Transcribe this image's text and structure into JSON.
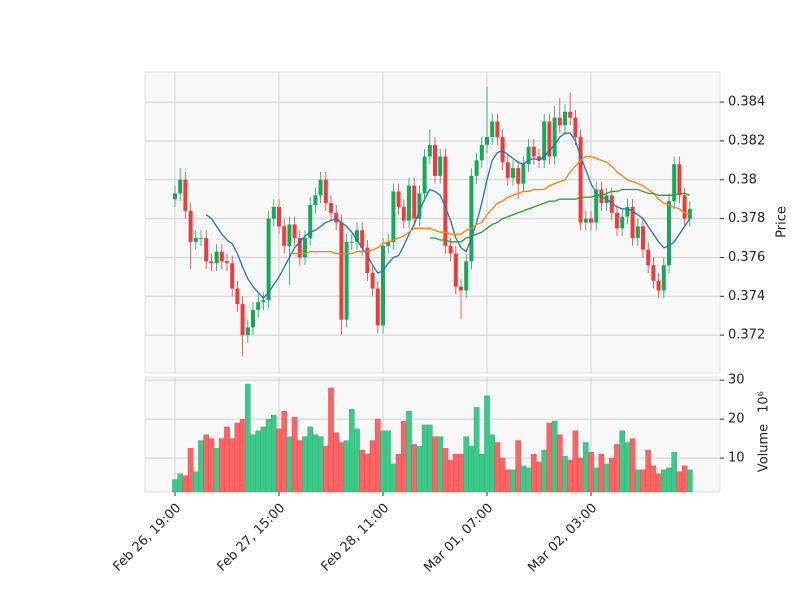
{
  "chart_data": {
    "type": "candlestick",
    "y_label": "Price",
    "volume_label": "Volume",
    "volume_exponent": "10⁶",
    "categories": [
      "Feb 26, 19:00",
      null,
      null,
      null,
      null,
      null,
      null,
      null,
      null,
      null,
      null,
      null,
      null,
      null,
      null,
      null,
      null,
      null,
      null,
      null,
      "Feb 27, 15:00",
      null,
      null,
      null,
      null,
      null,
      null,
      null,
      null,
      null,
      null,
      null,
      null,
      null,
      null,
      null,
      null,
      null,
      null,
      null,
      "Feb 28, 11:00",
      null,
      null,
      null,
      null,
      null,
      null,
      null,
      null,
      null,
      null,
      null,
      null,
      null,
      null,
      null,
      null,
      null,
      null,
      null,
      "Mar 01, 07:00",
      null,
      null,
      null,
      null,
      null,
      null,
      null,
      null,
      null,
      null,
      null,
      null,
      null,
      null,
      null,
      null,
      null,
      null,
      null,
      "Mar 02, 03:00",
      null,
      null,
      null,
      null,
      null,
      null,
      null,
      null,
      null,
      null,
      null,
      null,
      null,
      null,
      null,
      null,
      null,
      null,
      null
    ],
    "open": [
      0.379,
      0.3793,
      0.38,
      0.3784,
      0.3768,
      0.377,
      0.377,
      0.3758,
      0.3757,
      0.3763,
      0.3758,
      0.3757,
      0.3744,
      0.3736,
      0.372,
      0.3724,
      0.3733,
      0.3737,
      0.3738,
      0.378,
      0.3786,
      0.3776,
      0.3766,
      0.3777,
      0.377,
      0.376,
      0.377,
      0.3787,
      0.3792,
      0.38,
      0.3788,
      0.3783,
      0.3778,
      0.3728,
      0.3768,
      0.3768,
      0.3774,
      0.3765,
      0.3752,
      0.3744,
      0.3725,
      0.3766,
      0.3768,
      0.3794,
      0.3786,
      0.3779,
      0.3797,
      0.378,
      0.3793,
      0.3812,
      0.3818,
      0.3802,
      0.3812,
      0.3766,
      0.3762,
      0.3745,
      0.3743,
      0.3758,
      0.3802,
      0.381,
      0.3818,
      0.3822,
      0.383,
      0.3822,
      0.3809,
      0.3801,
      0.3806,
      0.3798,
      0.3808,
      0.3817,
      0.3812,
      0.381,
      0.383,
      0.3812,
      0.3832,
      0.3828,
      0.3835,
      0.3832,
      0.3822,
      0.3778,
      0.378,
      0.3778,
      0.3795,
      0.3788,
      0.3792,
      0.3783,
      0.3775,
      0.3781,
      0.3786,
      0.377,
      0.3776,
      0.3764,
      0.3756,
      0.3748,
      0.3743,
      0.3756,
      0.3789,
      0.3808,
      0.3792,
      0.378
    ],
    "high": [
      0.3797,
      0.3806,
      0.3804,
      0.3788,
      0.3774,
      0.3774,
      0.3774,
      0.3762,
      0.3767,
      0.3767,
      0.3762,
      0.3761,
      0.3748,
      0.374,
      0.3728,
      0.3737,
      0.3741,
      0.3742,
      0.3784,
      0.379,
      0.379,
      0.378,
      0.3781,
      0.3781,
      0.3774,
      0.3774,
      0.3791,
      0.3796,
      0.3804,
      0.3804,
      0.3792,
      0.3787,
      0.3782,
      0.3772,
      0.3772,
      0.3778,
      0.3778,
      0.3769,
      0.3756,
      0.3748,
      0.377,
      0.3772,
      0.3798,
      0.3798,
      0.379,
      0.3801,
      0.3801,
      0.3797,
      0.3816,
      0.3826,
      0.3822,
      0.3816,
      0.3816,
      0.377,
      0.3766,
      0.3749,
      0.3762,
      0.3806,
      0.3814,
      0.3822,
      0.3848,
      0.3834,
      0.3834,
      0.3826,
      0.3813,
      0.381,
      0.381,
      0.3812,
      0.3821,
      0.3821,
      0.3816,
      0.3834,
      0.3834,
      0.3838,
      0.3842,
      0.3839,
      0.3845,
      0.3836,
      0.3826,
      0.3784,
      0.3784,
      0.3799,
      0.3799,
      0.3796,
      0.3796,
      0.3787,
      0.3785,
      0.379,
      0.379,
      0.378,
      0.378,
      0.3768,
      0.376,
      0.3752,
      0.376,
      0.3793,
      0.3812,
      0.3812,
      0.3796,
      0.3789
    ],
    "low": [
      0.3786,
      0.3789,
      0.378,
      0.3754,
      0.3764,
      0.3766,
      0.3754,
      0.3753,
      0.3753,
      0.3754,
      0.3753,
      0.374,
      0.3732,
      0.3709,
      0.3716,
      0.372,
      0.3729,
      0.3733,
      0.3734,
      0.3776,
      0.3772,
      0.3762,
      0.3746,
      0.3766,
      0.3756,
      0.3756,
      0.3766,
      0.3783,
      0.3788,
      0.3784,
      0.3779,
      0.3774,
      0.372,
      0.3724,
      0.3764,
      0.3764,
      0.3761,
      0.3748,
      0.374,
      0.3721,
      0.3721,
      0.3762,
      0.3764,
      0.3782,
      0.3775,
      0.3775,
      0.3776,
      0.3776,
      0.3789,
      0.3808,
      0.3798,
      0.3798,
      0.3762,
      0.3758,
      0.3741,
      0.3728,
      0.3739,
      0.3754,
      0.3798,
      0.3806,
      0.3814,
      0.3818,
      0.3818,
      0.3805,
      0.3797,
      0.3797,
      0.379,
      0.3794,
      0.3804,
      0.3808,
      0.3806,
      0.3806,
      0.3808,
      0.3808,
      0.3824,
      0.3824,
      0.3828,
      0.3818,
      0.3774,
      0.3774,
      0.3774,
      0.3774,
      0.3784,
      0.3784,
      0.3779,
      0.3771,
      0.3771,
      0.3777,
      0.3766,
      0.3766,
      0.376,
      0.3752,
      0.3744,
      0.3739,
      0.3739,
      0.3752,
      0.3785,
      0.3788,
      0.3776,
      0.3776
    ],
    "close": [
      0.3793,
      0.38,
      0.3784,
      0.3768,
      0.377,
      0.377,
      0.3758,
      0.3757,
      0.3763,
      0.3758,
      0.3757,
      0.3744,
      0.3736,
      0.372,
      0.3724,
      0.3733,
      0.3737,
      0.3738,
      0.378,
      0.3786,
      0.3776,
      0.3766,
      0.3777,
      0.377,
      0.376,
      0.377,
      0.3787,
      0.3792,
      0.38,
      0.3788,
      0.3783,
      0.3778,
      0.3728,
      0.3768,
      0.3768,
      0.3774,
      0.3765,
      0.3752,
      0.3744,
      0.3725,
      0.3766,
      0.3768,
      0.3794,
      0.3786,
      0.3779,
      0.3797,
      0.378,
      0.3793,
      0.3812,
      0.3818,
      0.3802,
      0.3812,
      0.3766,
      0.3762,
      0.3745,
      0.3743,
      0.3758,
      0.3802,
      0.381,
      0.3818,
      0.3822,
      0.383,
      0.3822,
      0.3809,
      0.3801,
      0.3806,
      0.3798,
      0.3808,
      0.3817,
      0.3812,
      0.381,
      0.383,
      0.3812,
      0.3832,
      0.3828,
      0.3835,
      0.3832,
      0.3822,
      0.3778,
      0.378,
      0.3778,
      0.3795,
      0.3788,
      0.3792,
      0.3783,
      0.3775,
      0.3781,
      0.3786,
      0.377,
      0.3776,
      0.3764,
      0.3756,
      0.3748,
      0.3743,
      0.3756,
      0.3789,
      0.3808,
      0.3792,
      0.378,
      0.3785
    ],
    "volume": [
      4.5,
      6,
      5.5,
      12.5,
      6.5,
      14.5,
      16,
      15,
      12.5,
      15,
      18,
      15,
      19,
      20,
      29,
      16,
      17,
      18,
      20,
      21,
      17.5,
      22,
      15.5,
      20.5,
      14.5,
      15.5,
      18,
      16,
      15.5,
      13,
      28,
      16.5,
      14,
      14.5,
      22.5,
      17.5,
      12,
      11,
      14.5,
      20,
      17,
      17,
      8.5,
      11,
      19.5,
      22,
      13.5,
      13,
      18.5,
      18.5,
      15.5,
      15.5,
      12.5,
      9.5,
      11,
      11,
      15.5,
      13,
      23,
      11,
      26,
      16,
      14,
      10,
      7,
      7,
      14.5,
      8,
      7.5,
      11,
      9,
      12,
      19,
      19.5,
      16,
      10.5,
      9.5,
      17,
      10,
      14,
      11.5,
      7.5,
      11,
      8.5,
      10,
      13.5,
      17,
      14,
      15,
      7,
      7,
      12,
      8,
      6,
      7,
      7.5,
      11.5,
      6.5,
      8,
      7
    ],
    "moving_averages": [
      {
        "color": "#1f77b4",
        "values": [
          null,
          null,
          null,
          null,
          null,
          null,
          0.3782,
          0.378,
          0.3776,
          0.3772,
          0.3769,
          0.3767,
          0.3762,
          0.3755,
          0.3749,
          0.3745,
          0.3742,
          0.3739,
          0.3742,
          0.3746,
          0.375,
          0.3755,
          0.376,
          0.3765,
          0.3768,
          0.3771,
          0.3773,
          0.3774,
          0.3776,
          0.3778,
          0.3779,
          0.378,
          0.3778,
          0.3776,
          0.3773,
          0.3769,
          0.3765,
          0.3761,
          0.3756,
          0.3752,
          0.3753,
          0.3757,
          0.376,
          0.3761,
          0.3766,
          0.3772,
          0.3777,
          0.3784,
          0.379,
          0.3795,
          0.3794,
          0.3792,
          0.3786,
          0.3779,
          0.377,
          0.3765,
          0.3763,
          0.377,
          0.3778,
          0.3788,
          0.38,
          0.381,
          0.3814,
          0.3815,
          0.3813,
          0.3811,
          0.3809,
          0.3808,
          0.381,
          0.3811,
          0.381,
          0.3812,
          0.3815,
          0.3818,
          0.3822,
          0.3824,
          0.3824,
          0.382,
          0.3812,
          0.3805,
          0.3798,
          0.3793,
          0.3791,
          0.379,
          0.3788,
          0.3786,
          0.3785,
          0.3785,
          0.3784,
          0.3782,
          0.378,
          0.3776,
          0.3772,
          0.3768,
          0.3765,
          0.3766,
          0.3768,
          0.3772,
          0.3776,
          0.378
        ]
      },
      {
        "color": "#ff7f0e",
        "values": [
          null,
          null,
          null,
          null,
          null,
          null,
          null,
          null,
          null,
          null,
          null,
          null,
          null,
          null,
          null,
          null,
          null,
          null,
          null,
          null,
          null,
          null,
          0.3762,
          0.3762,
          0.3762,
          0.3762,
          0.3763,
          0.3763,
          0.3763,
          0.3763,
          0.3763,
          0.3762,
          0.3762,
          0.3762,
          0.3762,
          0.3763,
          0.3763,
          0.3763,
          0.3764,
          0.3765,
          0.3767,
          0.3768,
          0.3769,
          0.377,
          0.3771,
          0.3773,
          0.3775,
          0.3775,
          0.3775,
          0.3775,
          0.3774,
          0.3773,
          0.3773,
          0.3772,
          0.3772,
          0.3772,
          0.3774,
          0.3775,
          0.3777,
          0.3778,
          0.3782,
          0.3785,
          0.3788,
          0.3789,
          0.3791,
          0.3792,
          0.3793,
          0.3794,
          0.3794,
          0.3795,
          0.3795,
          0.3795,
          0.3797,
          0.3798,
          0.3799,
          0.38,
          0.3804,
          0.3807,
          0.381,
          0.3812,
          0.3812,
          0.3811,
          0.381,
          0.3809,
          0.3807,
          0.3804,
          0.3802,
          0.38,
          0.3799,
          0.3798,
          0.3797,
          0.3795,
          0.3793,
          0.379,
          0.3788,
          0.3787,
          0.3786,
          0.3785,
          0.3783,
          0.3782
        ]
      },
      {
        "color": "#2ca02c",
        "values": [
          null,
          null,
          null,
          null,
          null,
          null,
          null,
          null,
          null,
          null,
          null,
          null,
          null,
          null,
          null,
          null,
          null,
          null,
          null,
          null,
          null,
          null,
          null,
          null,
          null,
          null,
          null,
          null,
          null,
          null,
          null,
          null,
          null,
          null,
          null,
          null,
          null,
          null,
          null,
          null,
          null,
          null,
          null,
          null,
          null,
          null,
          null,
          null,
          null,
          0.377,
          0.377,
          0.3769,
          0.3769,
          0.3768,
          0.3768,
          0.3768,
          0.377,
          0.3771,
          0.3772,
          0.3773,
          0.3775,
          0.3777,
          0.3778,
          0.378,
          0.3781,
          0.3782,
          0.3783,
          0.3784,
          0.3785,
          0.3786,
          0.3787,
          0.3788,
          0.3789,
          0.3789,
          0.379,
          0.379,
          0.379,
          0.379,
          0.3791,
          0.3791,
          0.3791,
          0.3792,
          0.3792,
          0.3793,
          0.3794,
          0.3794,
          0.3795,
          0.3795,
          0.3795,
          0.3795,
          0.3794,
          0.3793,
          0.3793,
          0.3792,
          0.3792,
          0.3792,
          0.3792,
          0.3793,
          0.3793,
          0.3792
        ]
      }
    ],
    "up_color": "#16a85b",
    "down_color": "#ef3b3b",
    "volume_up_color": "#3cc98a",
    "volume_down_color": "#ff6464",
    "ylim": [
      0.37005,
      0.38555
    ],
    "yticks": [
      0.372,
      0.374,
      0.376,
      0.378,
      0.38,
      0.382,
      0.384
    ],
    "volume_ylim": [
      1.3,
      30.8
    ],
    "volume_yticks": [
      10,
      20,
      30
    ],
    "grid": true
  }
}
